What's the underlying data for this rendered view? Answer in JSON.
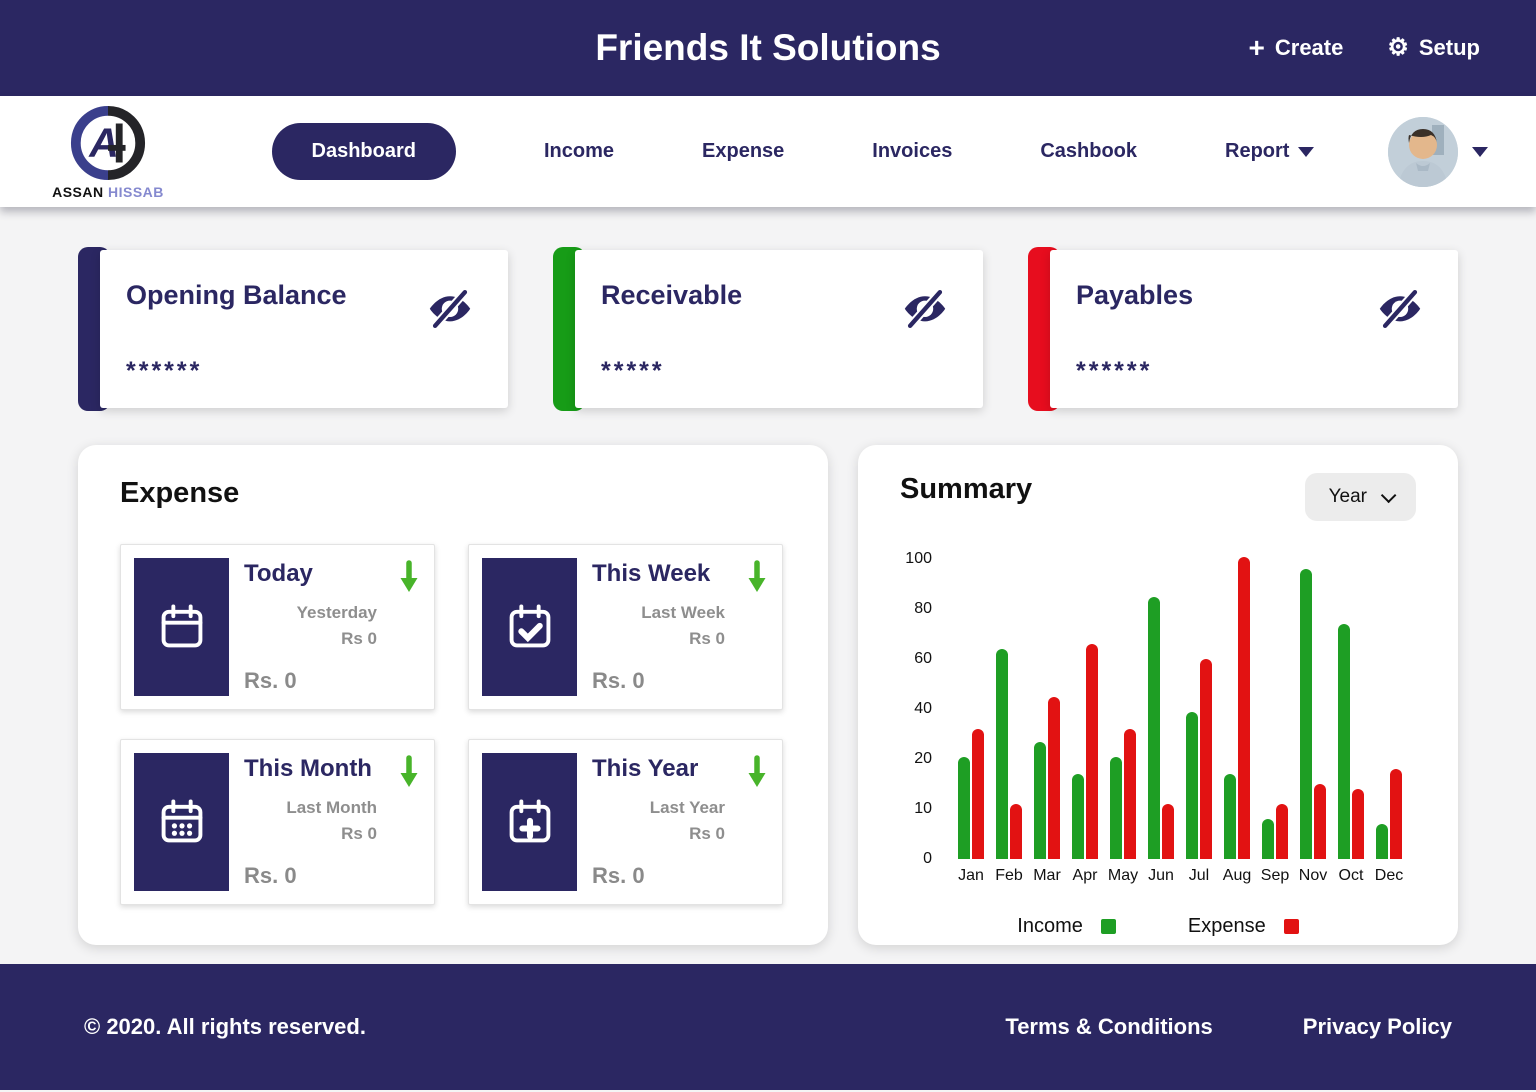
{
  "app": {
    "title": "Friends It Solutions",
    "create_label": "Create",
    "setup_label": "Setup"
  },
  "brand": {
    "name_primary": "ASSAN",
    "name_secondary": "HISSAB"
  },
  "nav": {
    "tabs": [
      {
        "label": "Dashboard",
        "active": true
      },
      {
        "label": "Income"
      },
      {
        "label": "Expense"
      },
      {
        "label": "Invoices"
      },
      {
        "label": "Cashbook"
      },
      {
        "label": "Report",
        "has_dropdown": true
      }
    ]
  },
  "balance_cards": [
    {
      "title": "Opening Balance",
      "masked_value": "******",
      "accent_color": "#2b2762"
    },
    {
      "title": "Receivable",
      "masked_value": "*****",
      "accent_color": "#179c17"
    },
    {
      "title": "Payables",
      "masked_value": "******",
      "accent_color": "#e70d1e"
    }
  ],
  "expense_section": {
    "title": "Expense",
    "cards": [
      {
        "title": "Today",
        "icon": "calendar-icon",
        "compare_label": "Yesterday",
        "compare_value": "Rs 0",
        "value": "Rs. 0"
      },
      {
        "title": "This Week",
        "icon": "calendar-check-icon",
        "compare_label": "Last Week",
        "compare_value": "Rs 0",
        "value": "Rs. 0"
      },
      {
        "title": "This Month",
        "icon": "calendar-grid-icon",
        "compare_label": "Last Month",
        "compare_value": "Rs 0",
        "value": "Rs. 0"
      },
      {
        "title": "This Year",
        "icon": "calendar-plus-icon",
        "compare_label": "Last Year",
        "compare_value": "Rs 0",
        "value": "Rs. 0"
      }
    ]
  },
  "summary": {
    "title": "Summary",
    "range_selector": "Year"
  },
  "chart_data": {
    "type": "bar",
    "categories": [
      "Jan",
      "Feb",
      "Mar",
      "Apr",
      "May",
      "Jun",
      "Jul",
      "Aug",
      "Sep",
      "Nov",
      "Oct",
      "Dec"
    ],
    "series": [
      {
        "name": "Income",
        "color": "#1e9e24",
        "values": [
          21,
          64,
          27,
          17,
          21,
          85,
          39,
          17,
          8,
          96,
          74,
          7
        ]
      },
      {
        "name": "Expense",
        "color": "#e21212",
        "values": [
          32,
          11,
          45,
          66,
          32,
          11,
          60,
          101,
          11,
          15,
          14,
          18
        ]
      }
    ],
    "y_ticks": [
      0,
      10,
      20,
      40,
      60,
      80,
      100
    ],
    "ylabel": "",
    "xlabel": "",
    "grid": false,
    "legend_position": "bottom"
  },
  "footer": {
    "copyright": "© 2020.  All rights reserved.",
    "links": [
      "Terms & Conditions",
      "Privacy Policy"
    ]
  },
  "colors": {
    "navy": "#2b2762",
    "green": "#1e9e24",
    "red": "#e21212",
    "arrow_green": "#48b42a"
  }
}
